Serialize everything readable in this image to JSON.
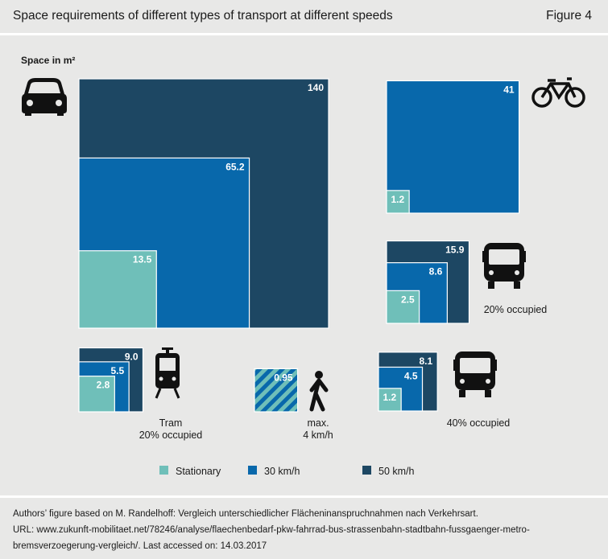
{
  "header": {
    "title": "Space requirements of different types of transport at different speeds",
    "figure_label": "Figure 4"
  },
  "chart_data": {
    "type": "nested-area-squares",
    "unit_label": "Space in m²",
    "series": [
      {
        "name": "Stationary",
        "color": "#6fbfb9"
      },
      {
        "name": "30 km/h",
        "color": "#0868ab"
      },
      {
        "name": "50 km/h",
        "color": "#1d4763"
      }
    ],
    "groups": [
      {
        "id": "car",
        "icon": "car-icon",
        "values": {
          "Stationary": 13.5,
          "30 km/h": 65.2,
          "50 km/h": 140
        },
        "labels": [
          "13.5",
          "65.2",
          "140"
        ],
        "caption": []
      },
      {
        "id": "bicycle",
        "icon": "bicycle-icon",
        "values": {
          "Stationary": 1.2,
          "30 km/h": 41
        },
        "labels": [
          "1.2",
          "41"
        ],
        "caption": []
      },
      {
        "id": "bus20",
        "icon": "bus-icon",
        "values": {
          "Stationary": 2.5,
          "30 km/h": 8.6,
          "50 km/h": 15.9
        },
        "labels": [
          "2.5",
          "8.6",
          "15.9"
        ],
        "caption": [
          "20% occupied"
        ]
      },
      {
        "id": "tram",
        "icon": "tram-icon",
        "values": {
          "Stationary": 2.8,
          "30 km/h": 5.5,
          "50 km/h": 9.0
        },
        "labels": [
          "2.8",
          "5.5",
          "9.0"
        ],
        "caption": [
          "Tram",
          "20% occupied"
        ]
      },
      {
        "id": "pedestrian",
        "icon": "pedestrian-icon",
        "values": {
          "max. 4 km/h": 0.95
        },
        "labels": [
          "0.95"
        ],
        "caption": [
          "max.",
          "4 km/h"
        ]
      },
      {
        "id": "bus40",
        "icon": "bus-icon",
        "values": {
          "Stationary": 1.2,
          "30 km/h": 4.5,
          "50 km/h": 8.1
        },
        "labels": [
          "1.2",
          "4.5",
          "8.1"
        ],
        "caption": [
          "40% occupied"
        ]
      }
    ]
  },
  "footer": {
    "line1": "Authors’ figure based on M. Randelhoff: Vergleich unterschiedlicher Flächeninanspruchnahmen nach Verkehrsart.",
    "line2": "URL: www.zukunft-mobilitaet.net/78246/analyse/flaechenbedarf-pkw-fahrrad-bus-strassenbahn-stadtbahn-fussgaenger-metro-",
    "line3": "bremsverzoegerung-vergleich/. Last accessed on: 14.03.2017"
  }
}
